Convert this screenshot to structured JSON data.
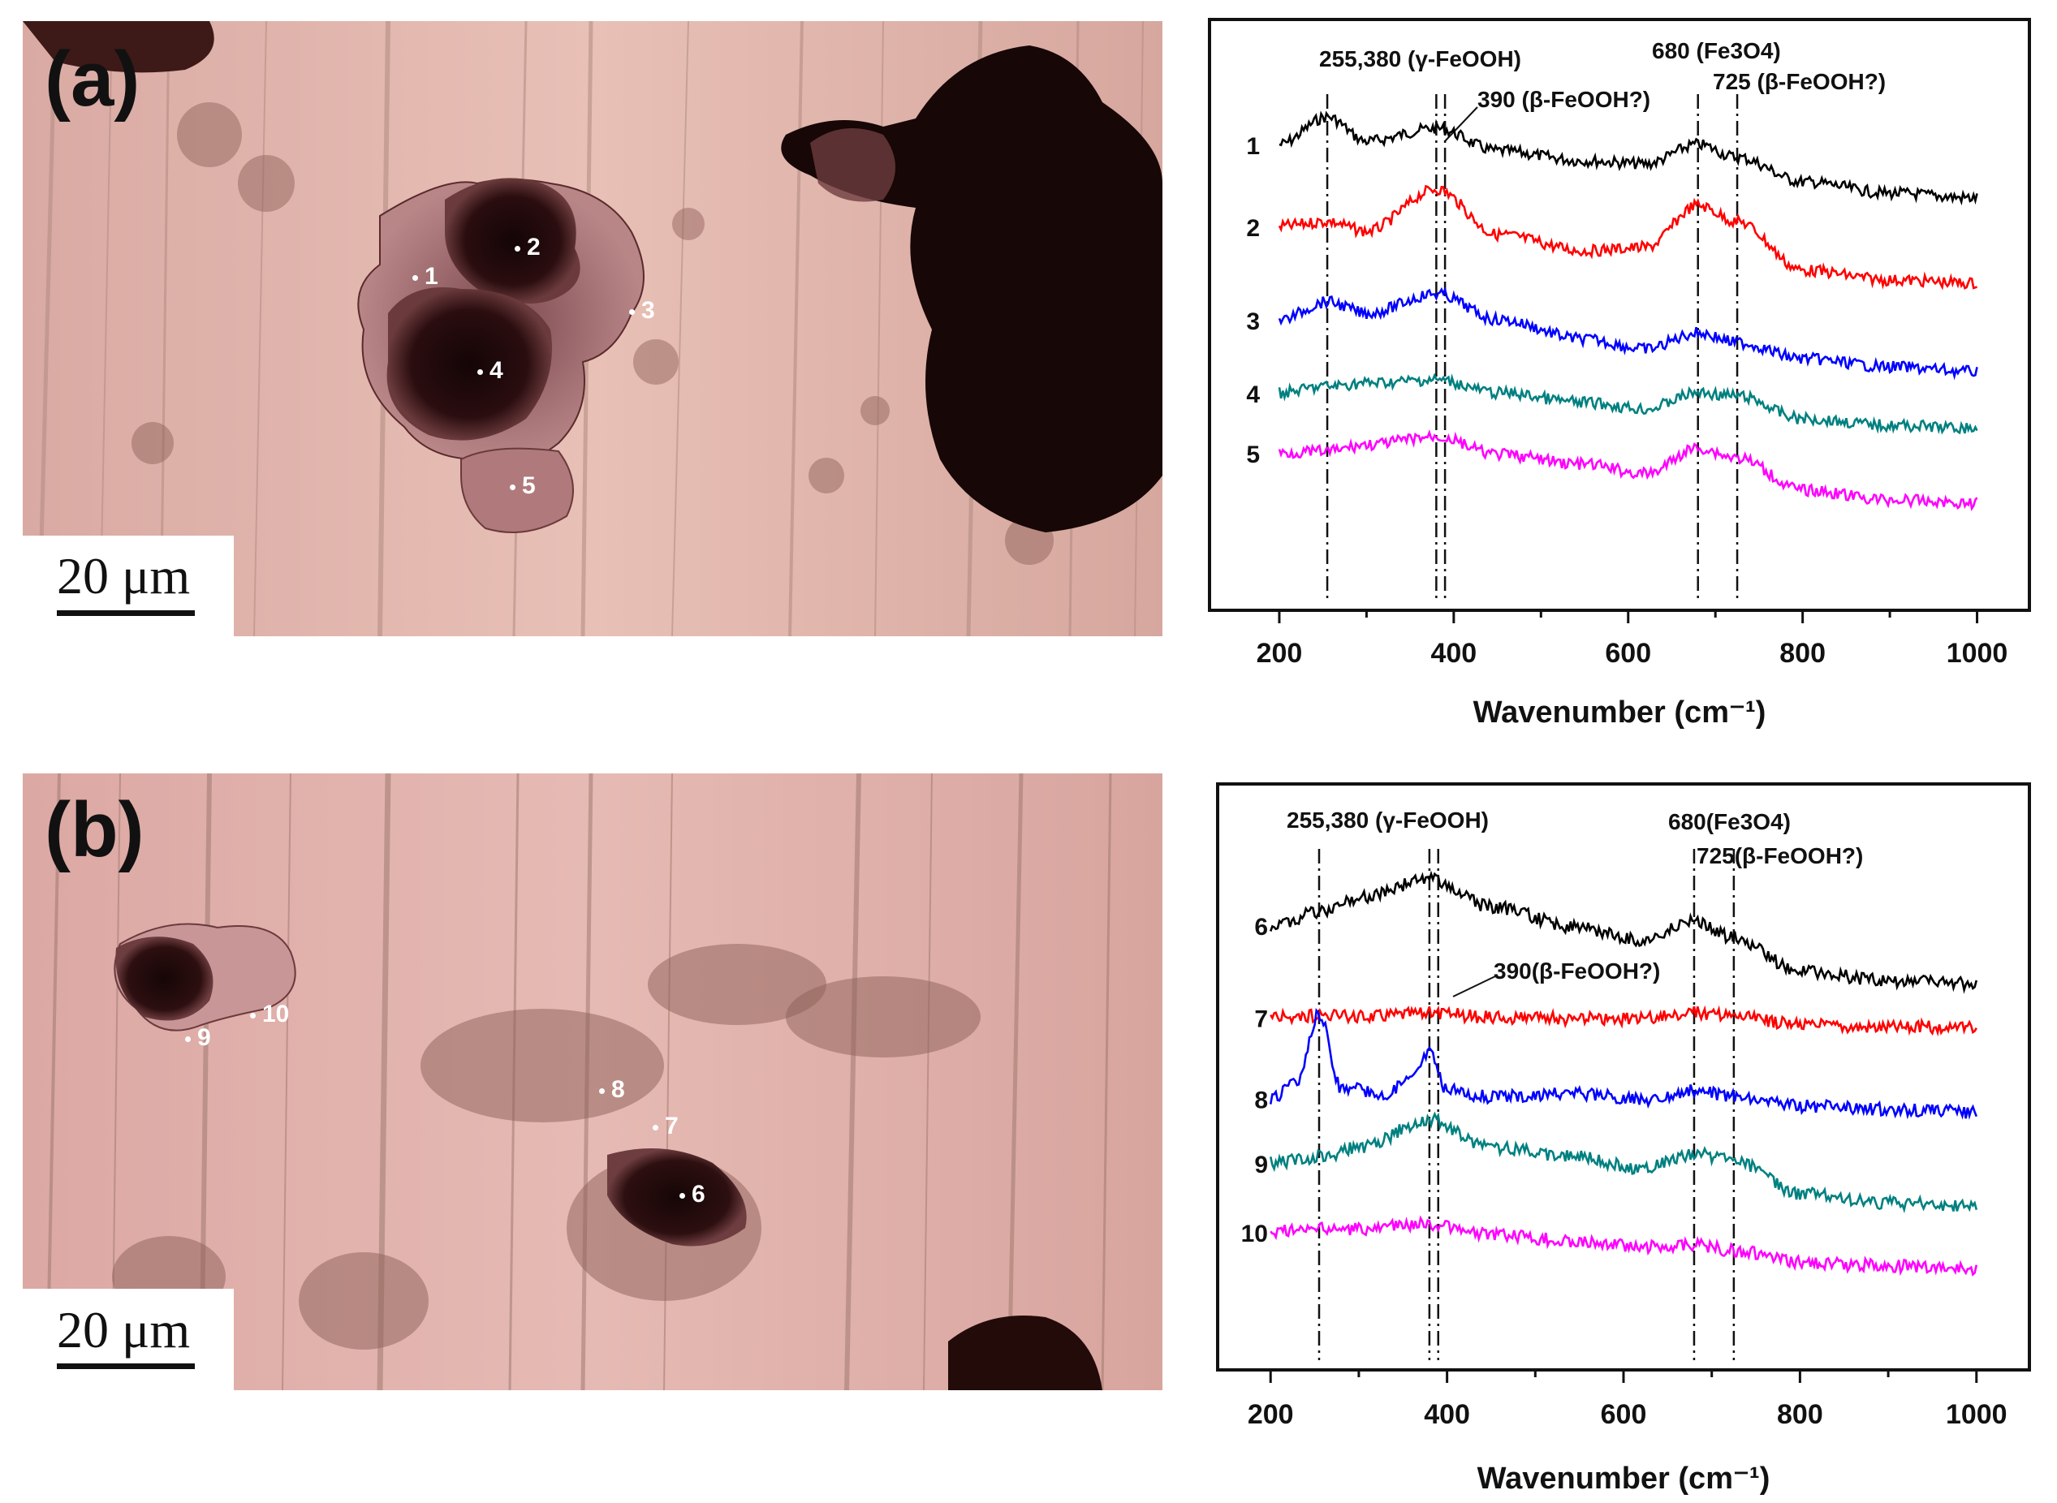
{
  "figure": {
    "panels": [
      {
        "label": "(a)",
        "scale_bar": "20 μm",
        "spots": [
          {
            "label": "1"
          },
          {
            "label": "2"
          },
          {
            "label": "3"
          },
          {
            "label": "4"
          },
          {
            "label": "5"
          }
        ]
      },
      {
        "label": "(b)",
        "scale_bar": "20 μm",
        "spots": [
          {
            "label": "6"
          },
          {
            "label": "7"
          },
          {
            "label": "8"
          },
          {
            "label": "9"
          },
          {
            "label": "10"
          }
        ]
      }
    ]
  },
  "chart_data": [
    {
      "type": "line",
      "title": "",
      "xlabel": "Wavenumber (cm⁻¹)",
      "ylabel": "",
      "xlim": [
        120,
        1060
      ],
      "x_ticks": [
        "200",
        "400",
        "600",
        "800",
        "1000"
      ],
      "grid": false,
      "annotations": [
        {
          "text": "255,380 (γ-FeOOH)",
          "lines": [
            255,
            380
          ]
        },
        {
          "text": "390 (β-FeOOH?)",
          "lines": [
            390
          ]
        },
        {
          "text": "680 (Fe3O4)",
          "lines": [
            680
          ]
        },
        {
          "text": "725 (β-FeOOH?)",
          "lines": [
            725
          ]
        }
      ],
      "series": [
        {
          "name": "1",
          "color": "#000000",
          "x": [
            200,
            255,
            300,
            380,
            450,
            550,
            620,
            680,
            725,
            800,
            900,
            1000
          ],
          "y": [
            0.78,
            0.95,
            0.8,
            0.88,
            0.74,
            0.68,
            0.66,
            0.78,
            0.7,
            0.55,
            0.48,
            0.45
          ]
        },
        {
          "name": "2",
          "color": "#ff0000",
          "x": [
            200,
            255,
            300,
            380,
            450,
            550,
            620,
            680,
            725,
            800,
            900,
            1000
          ],
          "y": [
            0.75,
            0.78,
            0.72,
            0.98,
            0.7,
            0.6,
            0.62,
            0.88,
            0.78,
            0.48,
            0.42,
            0.4
          ]
        },
        {
          "name": "3",
          "color": "#0000ff",
          "x": [
            200,
            255,
            300,
            380,
            450,
            550,
            620,
            680,
            725,
            800,
            900,
            1000
          ],
          "y": [
            0.74,
            0.85,
            0.78,
            0.9,
            0.74,
            0.62,
            0.56,
            0.66,
            0.6,
            0.5,
            0.45,
            0.42
          ]
        },
        {
          "name": "4",
          "color": "#008080",
          "x": [
            200,
            255,
            300,
            380,
            450,
            550,
            620,
            680,
            725,
            800,
            900,
            1000
          ],
          "y": [
            0.7,
            0.74,
            0.76,
            0.78,
            0.7,
            0.64,
            0.6,
            0.7,
            0.68,
            0.54,
            0.5,
            0.48
          ]
        },
        {
          "name": "5",
          "color": "#ff00ff",
          "x": [
            200,
            255,
            300,
            380,
            450,
            550,
            620,
            680,
            725,
            800,
            900,
            1000
          ],
          "y": [
            0.75,
            0.76,
            0.8,
            0.85,
            0.74,
            0.68,
            0.62,
            0.78,
            0.72,
            0.52,
            0.46,
            0.44
          ]
        }
      ]
    },
    {
      "type": "line",
      "title": "",
      "xlabel": "Wavenumber (cm⁻¹)",
      "ylabel": "",
      "xlim": [
        140,
        1060
      ],
      "x_ticks": [
        "200",
        "400",
        "600",
        "800",
        "1000"
      ],
      "grid": false,
      "annotations": [
        {
          "text": "255,380 (γ-FeOOH)",
          "lines": [
            255,
            380
          ]
        },
        {
          "text": "390(β-FeOOH?)",
          "lines": [
            390
          ]
        },
        {
          "text": "680(Fe3O4)",
          "lines": [
            680
          ]
        },
        {
          "text": "725(β-FeOOH?)",
          "lines": [
            725
          ]
        }
      ],
      "series": [
        {
          "name": "6",
          "color": "#000000",
          "x": [
            200,
            255,
            300,
            380,
            450,
            550,
            620,
            680,
            725,
            800,
            900,
            1000
          ],
          "y": [
            0.7,
            0.78,
            0.88,
            1.0,
            0.82,
            0.68,
            0.6,
            0.72,
            0.62,
            0.4,
            0.34,
            0.32
          ]
        },
        {
          "name": "7",
          "color": "#ff0000",
          "x": [
            200,
            255,
            300,
            380,
            450,
            550,
            620,
            680,
            725,
            800,
            900,
            1000
          ],
          "y": [
            0.55,
            0.56,
            0.56,
            0.58,
            0.55,
            0.54,
            0.54,
            0.58,
            0.56,
            0.5,
            0.49,
            0.48
          ]
        },
        {
          "name": "8",
          "color": "#0000ff",
          "x": [
            200,
            230,
            255,
            280,
            330,
            360,
            380,
            400,
            450,
            550,
            620,
            680,
            725,
            800,
            900,
            1000
          ],
          "y": [
            0.45,
            0.55,
            1.0,
            0.52,
            0.48,
            0.58,
            0.75,
            0.5,
            0.46,
            0.48,
            0.44,
            0.5,
            0.46,
            0.4,
            0.38,
            0.36
          ]
        },
        {
          "name": "9",
          "color": "#008080",
          "x": [
            200,
            255,
            300,
            380,
            450,
            550,
            620,
            680,
            725,
            800,
            900,
            1000
          ],
          "y": [
            0.62,
            0.66,
            0.72,
            0.9,
            0.72,
            0.66,
            0.58,
            0.68,
            0.64,
            0.42,
            0.36,
            0.34
          ]
        },
        {
          "name": "10",
          "color": "#ff00ff",
          "x": [
            200,
            255,
            300,
            380,
            450,
            550,
            620,
            680,
            725,
            800,
            900,
            1000
          ],
          "y": [
            0.7,
            0.72,
            0.72,
            0.75,
            0.68,
            0.64,
            0.6,
            0.62,
            0.58,
            0.5,
            0.48,
            0.46
          ]
        }
      ]
    }
  ]
}
